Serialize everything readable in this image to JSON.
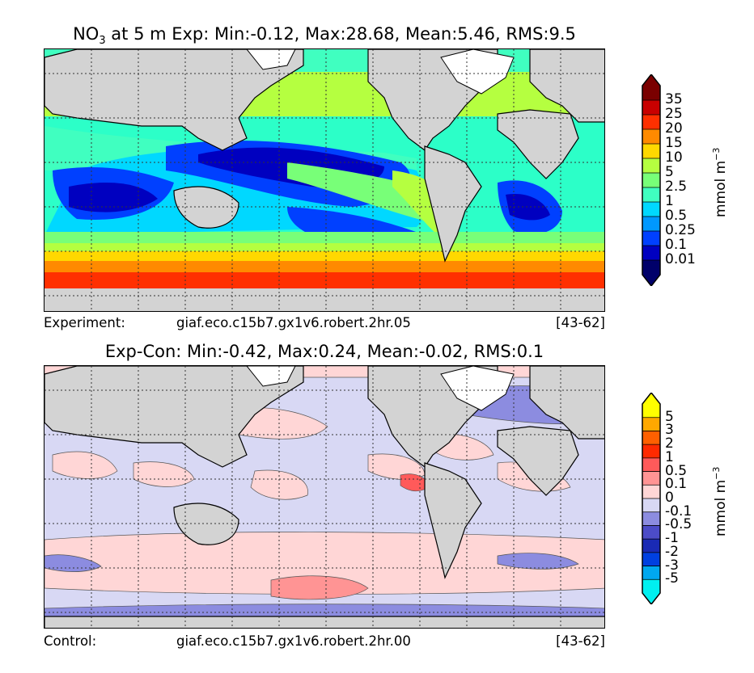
{
  "top_panel": {
    "title_prefix": "NO",
    "title_sub": "3",
    "title_rest": " at 5 m Exp: Min:-0.12, Max:28.68, Mean:5.46, RMS:9.5",
    "caption_label": "Experiment:",
    "caption_case": "giaf.eco.c15b7.gx1v6.robert.2hr.05",
    "caption_years": "[43-62]",
    "colorbar": {
      "unit_base": "mmol m",
      "unit_exp": "−3",
      "ticks": [
        "35",
        "25",
        "20",
        "15",
        "10",
        "5",
        "2.5",
        "1",
        "0.5",
        "0.25",
        "0.1",
        "0.01"
      ],
      "colors": [
        "#7a0000",
        "#c80000",
        "#ff3000",
        "#ff8a00",
        "#ffd800",
        "#b5ff40",
        "#78ff78",
        "#40ffc0",
        "#00d8ff",
        "#0098ff",
        "#0040ff",
        "#0000c0",
        "#00006a"
      ]
    }
  },
  "bottom_panel": {
    "title": "Exp-Con: Min:-0.42, Max:0.24, Mean:-0.02, RMS:0.1",
    "caption_label": "Control:",
    "caption_case": "giaf.eco.c15b7.gx1v6.robert.2hr.00",
    "caption_years": "[43-62]",
    "colorbar": {
      "unit_base": "mmol m",
      "unit_exp": "−3",
      "ticks": [
        "5",
        "3",
        "2",
        "1",
        "0.5",
        "0.1",
        "0",
        "-0.1",
        "-0.5",
        "-1",
        "-2",
        "-3",
        "-5"
      ],
      "colors": [
        "#ffff00",
        "#ffa800",
        "#ff6000",
        "#ff2a00",
        "#ff5a5a",
        "#ff9494",
        "#ffd6d6",
        "#d8d8f4",
        "#8c8ce0",
        "#4c4cc8",
        "#1a2ab4",
        "#0040e0",
        "#00a8f0",
        "#00f0f0"
      ]
    }
  }
}
